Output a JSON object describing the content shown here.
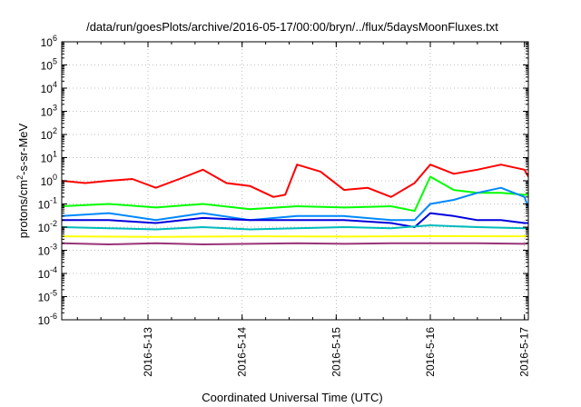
{
  "chart_data": {
    "type": "line",
    "title": "/data/run/goesPlots/archive/2016-05-17/00:00/bryn/../flux/5daysMoonFluxes.txt",
    "xlabel": "Coordinated Universal Time (UTC)",
    "ylabel_parts": {
      "base": "protons/cm",
      "sup": "2",
      "rest": "-s-sr-MeV"
    },
    "yscale": "log",
    "ylim": [
      1e-06,
      1000000.0
    ],
    "ytick_exponents": [
      -6,
      -5,
      -4,
      -3,
      -2,
      -1,
      0,
      1,
      2,
      3,
      4,
      5,
      6
    ],
    "xlim": [
      "2016-05-12T02:00",
      "2016-05-17T01:00"
    ],
    "x_ticks": [
      {
        "label": "2016-5-13",
        "at": "2016-05-13T00:00"
      },
      {
        "label": "2016-5-14",
        "at": "2016-05-14T00:00"
      },
      {
        "label": "2016-5-15",
        "at": "2016-05-15T00:00"
      },
      {
        "label": "2016-5-16",
        "at": "2016-05-16T00:00"
      },
      {
        "label": "2016-5-17",
        "at": "2016-05-17T00:00"
      }
    ],
    "grid": true,
    "series": [
      {
        "color": "#ff0000",
        "x": [
          "2016-05-12T02:00",
          "2016-05-12T08:00",
          "2016-05-12T14:00",
          "2016-05-12T20:00",
          "2016-05-13T02:00",
          "2016-05-13T08:00",
          "2016-05-13T14:00",
          "2016-05-13T20:00",
          "2016-05-14T02:00",
          "2016-05-14T08:00",
          "2016-05-14T11:00",
          "2016-05-14T14:00",
          "2016-05-14T20:00",
          "2016-05-15T02:00",
          "2016-05-15T08:00",
          "2016-05-15T14:00",
          "2016-05-15T20:00",
          "2016-05-16T00:00",
          "2016-05-16T06:00",
          "2016-05-16T12:00",
          "2016-05-16T18:00",
          "2016-05-17T00:00",
          "2016-05-17T01:00"
        ],
        "values": [
          1.0,
          0.8,
          1.0,
          1.2,
          0.5,
          1.2,
          3.0,
          0.8,
          0.6,
          0.2,
          0.25,
          5.0,
          2.5,
          0.4,
          0.5,
          0.2,
          0.8,
          5.0,
          2.0,
          3.0,
          5.0,
          3.0,
          1.5
        ]
      },
      {
        "color": "#00ff00",
        "x": [
          "2016-05-12T02:00",
          "2016-05-12T14:00",
          "2016-05-13T02:00",
          "2016-05-13T14:00",
          "2016-05-14T02:00",
          "2016-05-14T14:00",
          "2016-05-15T02:00",
          "2016-05-15T14:00",
          "2016-05-15T20:00",
          "2016-05-16T00:00",
          "2016-05-16T06:00",
          "2016-05-16T12:00",
          "2016-05-16T18:00",
          "2016-05-17T00:00",
          "2016-05-17T01:00"
        ],
        "values": [
          0.08,
          0.1,
          0.07,
          0.1,
          0.06,
          0.08,
          0.07,
          0.08,
          0.05,
          1.5,
          0.4,
          0.3,
          0.3,
          0.25,
          0.25
        ]
      },
      {
        "color": "#0088ff",
        "x": [
          "2016-05-12T02:00",
          "2016-05-12T14:00",
          "2016-05-13T02:00",
          "2016-05-13T14:00",
          "2016-05-14T02:00",
          "2016-05-14T14:00",
          "2016-05-15T02:00",
          "2016-05-15T14:00",
          "2016-05-15T20:00",
          "2016-05-16T00:00",
          "2016-05-16T06:00",
          "2016-05-16T12:00",
          "2016-05-16T18:00",
          "2016-05-17T00:00",
          "2016-05-17T01:00"
        ],
        "values": [
          0.03,
          0.04,
          0.02,
          0.04,
          0.02,
          0.03,
          0.03,
          0.02,
          0.02,
          0.1,
          0.15,
          0.3,
          0.5,
          0.2,
          0.07
        ]
      },
      {
        "color": "#0000dd",
        "x": [
          "2016-05-12T02:00",
          "2016-05-12T14:00",
          "2016-05-13T02:00",
          "2016-05-13T14:00",
          "2016-05-14T02:00",
          "2016-05-14T14:00",
          "2016-05-15T02:00",
          "2016-05-15T14:00",
          "2016-05-15T20:00",
          "2016-05-16T00:00",
          "2016-05-16T06:00",
          "2016-05-16T12:00",
          "2016-05-16T18:00",
          "2016-05-17T00:00",
          "2016-05-17T01:00"
        ],
        "values": [
          0.02,
          0.02,
          0.015,
          0.025,
          0.02,
          0.02,
          0.02,
          0.015,
          0.01,
          0.04,
          0.03,
          0.02,
          0.02,
          0.015,
          0.015
        ]
      },
      {
        "color": "#00bbbb",
        "x": [
          "2016-05-12T02:00",
          "2016-05-12T14:00",
          "2016-05-13T02:00",
          "2016-05-13T14:00",
          "2016-05-14T02:00",
          "2016-05-14T14:00",
          "2016-05-15T02:00",
          "2016-05-15T14:00",
          "2016-05-16T00:00",
          "2016-05-16T12:00",
          "2016-05-17T00:00",
          "2016-05-17T01:00"
        ],
        "values": [
          0.01,
          0.009,
          0.008,
          0.01,
          0.008,
          0.009,
          0.01,
          0.009,
          0.012,
          0.01,
          0.009,
          0.009
        ]
      },
      {
        "color": "#ffff00",
        "x": [
          "2016-05-12T02:00",
          "2016-05-13T02:00",
          "2016-05-14T02:00",
          "2016-05-15T02:00",
          "2016-05-16T02:00",
          "2016-05-17T01:00"
        ],
        "values": [
          0.004,
          0.0038,
          0.004,
          0.0039,
          0.0041,
          0.004
        ]
      },
      {
        "color": "#993377",
        "x": [
          "2016-05-12T02:00",
          "2016-05-12T14:00",
          "2016-05-13T02:00",
          "2016-05-13T14:00",
          "2016-05-14T02:00",
          "2016-05-14T14:00",
          "2016-05-15T02:00",
          "2016-05-15T14:00",
          "2016-05-16T00:00",
          "2016-05-16T12:00",
          "2016-05-17T00:00",
          "2016-05-17T01:00"
        ],
        "values": [
          0.002,
          0.0018,
          0.002,
          0.0018,
          0.0019,
          0.002,
          0.0019,
          0.002,
          0.002,
          0.002,
          0.0019,
          0.002
        ]
      }
    ]
  }
}
